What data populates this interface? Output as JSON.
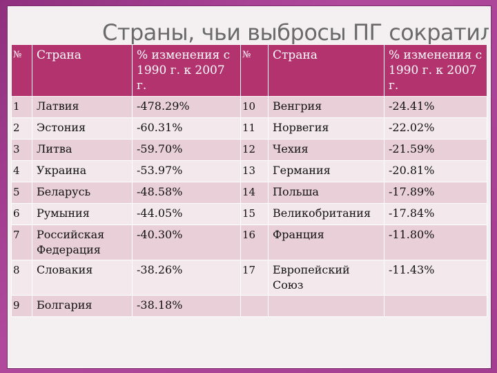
{
  "title": "Страны, чьи выбросы ПГ сократились",
  "headers": {
    "num": "№",
    "country": "Страна",
    "change": "% изменения с 1990 г. к 2007 г."
  },
  "rows": [
    {
      "n1": "1",
      "c1": "Латвия",
      "v1": "-478.29%",
      "n2": "10",
      "c2": "Венгрия",
      "v2": "-24.41%"
    },
    {
      "n1": "2",
      "c1": "Эстония",
      "v1": "-60.31%",
      "n2": "11",
      "c2": "Норвегия",
      "v2": "-22.02%"
    },
    {
      "n1": "3",
      "c1": "Литва",
      "v1": "-59.70%",
      "n2": "12",
      "c2": "Чехия",
      "v2": "-21.59%"
    },
    {
      "n1": "4",
      "c1": "Украина",
      "v1": "-53.97%",
      "n2": "13",
      "c2": "Германия",
      "v2": "-20.81%"
    },
    {
      "n1": "5",
      "c1": "Беларусь",
      "v1": "-48.58%",
      "n2": "14",
      "c2": "Польша",
      "v2": "-17.89%"
    },
    {
      "n1": "6",
      "c1": "Румыния",
      "v1": "-44.05%",
      "n2": "15",
      "c2": "Великобритания",
      "v2": "-17.84%"
    },
    {
      "n1": "7",
      "c1": "Российская Федерация",
      "v1": "-40.30%",
      "n2": "16",
      "c2": "Франция",
      "v2": "-11.80%"
    },
    {
      "n1": "8",
      "c1": "Словакия",
      "v1": "-38.26%",
      "n2": "17",
      "c2": "Европейский Союз",
      "v2": "-11.43%"
    },
    {
      "n1": "9",
      "c1": "Болгария",
      "v1": "-38.18%",
      "n2": "",
      "c2": "",
      "v2": ""
    }
  ]
}
